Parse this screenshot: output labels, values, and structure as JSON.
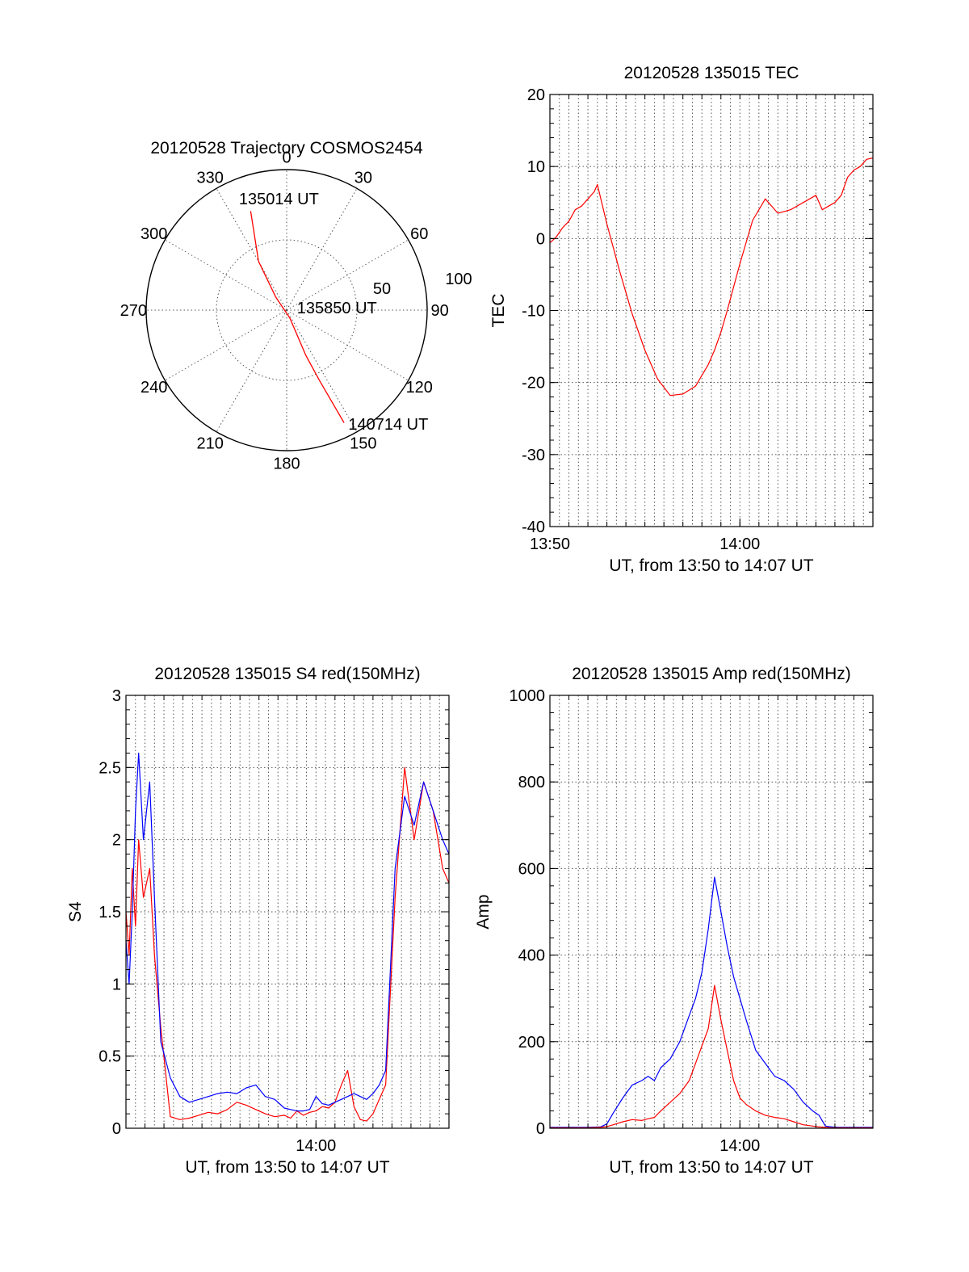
{
  "figure": {
    "date": "20120528",
    "pass_start": "135015"
  },
  "chart_data": [
    {
      "type": "polar",
      "title": "20120528 Trajectory COSMOS2454",
      "angle_labels": [
        "0",
        "30",
        "60",
        "90",
        "120",
        "150",
        "180",
        "210",
        "240",
        "270",
        "300",
        "330"
      ],
      "radial_labels": [
        "50",
        "100"
      ],
      "radial_max": 100,
      "grid": true,
      "trajectory_color": "#ff0000",
      "trajectory": [
        {
          "az": 340,
          "r": 75
        },
        {
          "az": 330,
          "r": 40
        },
        {
          "az": 320,
          "r": 12
        },
        {
          "az": 158,
          "r": 6
        },
        {
          "az": 157,
          "r": 35
        },
        {
          "az": 155,
          "r": 55
        },
        {
          "az": 153,
          "r": 90
        }
      ],
      "annotations": [
        {
          "text": "135014 UT",
          "az": 339,
          "r": 82
        },
        {
          "text": "135850 UT",
          "az": 95,
          "r": 12
        },
        {
          "text": "140714 UT",
          "az": 150,
          "r": 97
        }
      ]
    },
    {
      "type": "line",
      "title": "20120528 135015 TEC",
      "xlabel": "UT, from 13:50 to 14:07 UT",
      "ylabel": "TEC",
      "xlim": [
        0,
        1020
      ],
      "ylim": [
        -40,
        20
      ],
      "yticks": [
        20,
        10,
        0,
        -10,
        -20,
        -30,
        -40
      ],
      "xticks": [
        {
          "v": 0,
          "label": "13:50"
        },
        {
          "v": 600,
          "label": "14:00"
        }
      ],
      "grid": true,
      "series": [
        {
          "color": "#ff0000",
          "x": [
            0,
            20,
            40,
            60,
            80,
            100,
            120,
            140,
            150,
            180,
            220,
            260,
            300,
            340,
            380,
            420,
            460,
            500,
            520,
            540,
            560,
            600,
            640,
            680,
            720,
            760,
            800,
            840,
            860,
            880,
            900,
            920,
            940,
            960,
            980,
            1000,
            1020
          ],
          "y": [
            -0.6,
            0.2,
            1.5,
            2.4,
            4.0,
            4.5,
            5.5,
            6.5,
            7.5,
            2.0,
            -4.5,
            -10.5,
            -15.5,
            -19.5,
            -21.8,
            -21.6,
            -20.5,
            -17.5,
            -15.5,
            -13.0,
            -10.0,
            -3.5,
            2.5,
            5.5,
            3.5,
            4.0,
            5.0,
            6.0,
            4.0,
            4.5,
            5.0,
            6.0,
            8.5,
            9.5,
            10.0,
            11.0,
            11.2
          ]
        }
      ]
    },
    {
      "type": "line",
      "title": "20120528 135015 S4 red(150MHz)",
      "xlabel": "UT, from 13:50 to 14:07 UT",
      "ylabel": "S4",
      "xlim": [
        0,
        1020
      ],
      "ylim": [
        0,
        3
      ],
      "yticks": [
        0,
        0.5,
        1,
        1.5,
        2,
        2.5,
        3
      ],
      "yticklabels": [
        "0",
        "0.5",
        "1",
        "1.5",
        "2",
        "2.5",
        "3"
      ],
      "xticks": [
        {
          "v": 600,
          "label": "14:00"
        }
      ],
      "grid": true,
      "series": [
        {
          "color": "#ff0000",
          "x": [
            0,
            10,
            20,
            30,
            40,
            55,
            75,
            90,
            110,
            140,
            170,
            200,
            230,
            260,
            290,
            320,
            350,
            380,
            410,
            440,
            470,
            500,
            520,
            540,
            560,
            580,
            600,
            620,
            640,
            660,
            680,
            700,
            720,
            740,
            760,
            780,
            800,
            820,
            850,
            880,
            910,
            940,
            970,
            1000,
            1020
          ],
          "y": [
            1.5,
            1.2,
            1.8,
            1.4,
            2.0,
            1.6,
            1.8,
            1.2,
            0.7,
            0.08,
            0.06,
            0.07,
            0.09,
            0.11,
            0.1,
            0.13,
            0.18,
            0.16,
            0.13,
            0.1,
            0.08,
            0.09,
            0.07,
            0.12,
            0.09,
            0.11,
            0.12,
            0.15,
            0.14,
            0.18,
            0.3,
            0.4,
            0.15,
            0.06,
            0.05,
            0.1,
            0.2,
            0.3,
            1.6,
            2.5,
            2.0,
            2.4,
            2.2,
            1.8,
            1.7
          ]
        },
        {
          "color": "#0000ff",
          "x": [
            0,
            10,
            20,
            30,
            40,
            55,
            75,
            90,
            110,
            140,
            170,
            200,
            230,
            260,
            290,
            320,
            350,
            380,
            410,
            440,
            470,
            500,
            520,
            540,
            560,
            580,
            600,
            620,
            640,
            660,
            680,
            700,
            720,
            740,
            760,
            780,
            800,
            820,
            850,
            880,
            910,
            940,
            970,
            1000,
            1020
          ],
          "y": [
            1.3,
            1.0,
            1.5,
            2.2,
            2.6,
            2.0,
            2.4,
            1.6,
            0.6,
            0.35,
            0.22,
            0.18,
            0.2,
            0.22,
            0.24,
            0.25,
            0.24,
            0.28,
            0.3,
            0.22,
            0.2,
            0.14,
            0.13,
            0.12,
            0.12,
            0.13,
            0.22,
            0.17,
            0.16,
            0.18,
            0.2,
            0.22,
            0.24,
            0.22,
            0.2,
            0.24,
            0.3,
            0.4,
            1.8,
            2.3,
            2.1,
            2.4,
            2.2,
            2.0,
            1.9
          ]
        }
      ]
    },
    {
      "type": "line",
      "title": "20120528 135015 Amp red(150MHz)",
      "xlabel": "UT, from 13:50 to 14:07 UT",
      "ylabel": "Amp",
      "xlim": [
        0,
        1020
      ],
      "ylim": [
        0,
        1000
      ],
      "yticks": [
        0,
        200,
        400,
        600,
        800,
        1000
      ],
      "xticks": [
        {
          "v": 600,
          "label": "14:00"
        }
      ],
      "grid": true,
      "series": [
        {
          "color": "#0000ff",
          "x": [
            0,
            60,
            120,
            160,
            180,
            200,
            230,
            260,
            290,
            310,
            330,
            350,
            380,
            410,
            440,
            460,
            480,
            500,
            520,
            540,
            560,
            580,
            600,
            620,
            650,
            680,
            710,
            740,
            770,
            800,
            830,
            850,
            870,
            890,
            910,
            940,
            980,
            1020
          ],
          "y": [
            2,
            2,
            2,
            3,
            10,
            35,
            70,
            100,
            110,
            120,
            110,
            140,
            160,
            200,
            260,
            300,
            360,
            460,
            580,
            500,
            420,
            350,
            300,
            250,
            180,
            150,
            120,
            110,
            90,
            60,
            40,
            30,
            5,
            3,
            2,
            2,
            2,
            2
          ]
        },
        {
          "color": "#ff0000",
          "x": [
            0,
            60,
            120,
            160,
            180,
            200,
            230,
            260,
            290,
            310,
            330,
            350,
            380,
            410,
            440,
            460,
            480,
            500,
            520,
            540,
            560,
            580,
            600,
            620,
            650,
            680,
            710,
            740,
            770,
            800,
            830,
            850,
            870,
            890,
            910,
            940,
            980,
            1020
          ],
          "y": [
            1,
            1,
            1,
            2,
            4,
            8,
            15,
            20,
            18,
            22,
            25,
            40,
            60,
            80,
            110,
            150,
            190,
            230,
            330,
            250,
            180,
            110,
            70,
            55,
            40,
            30,
            25,
            22,
            15,
            8,
            5,
            3,
            2,
            1,
            1,
            1,
            1,
            1
          ]
        }
      ]
    }
  ]
}
